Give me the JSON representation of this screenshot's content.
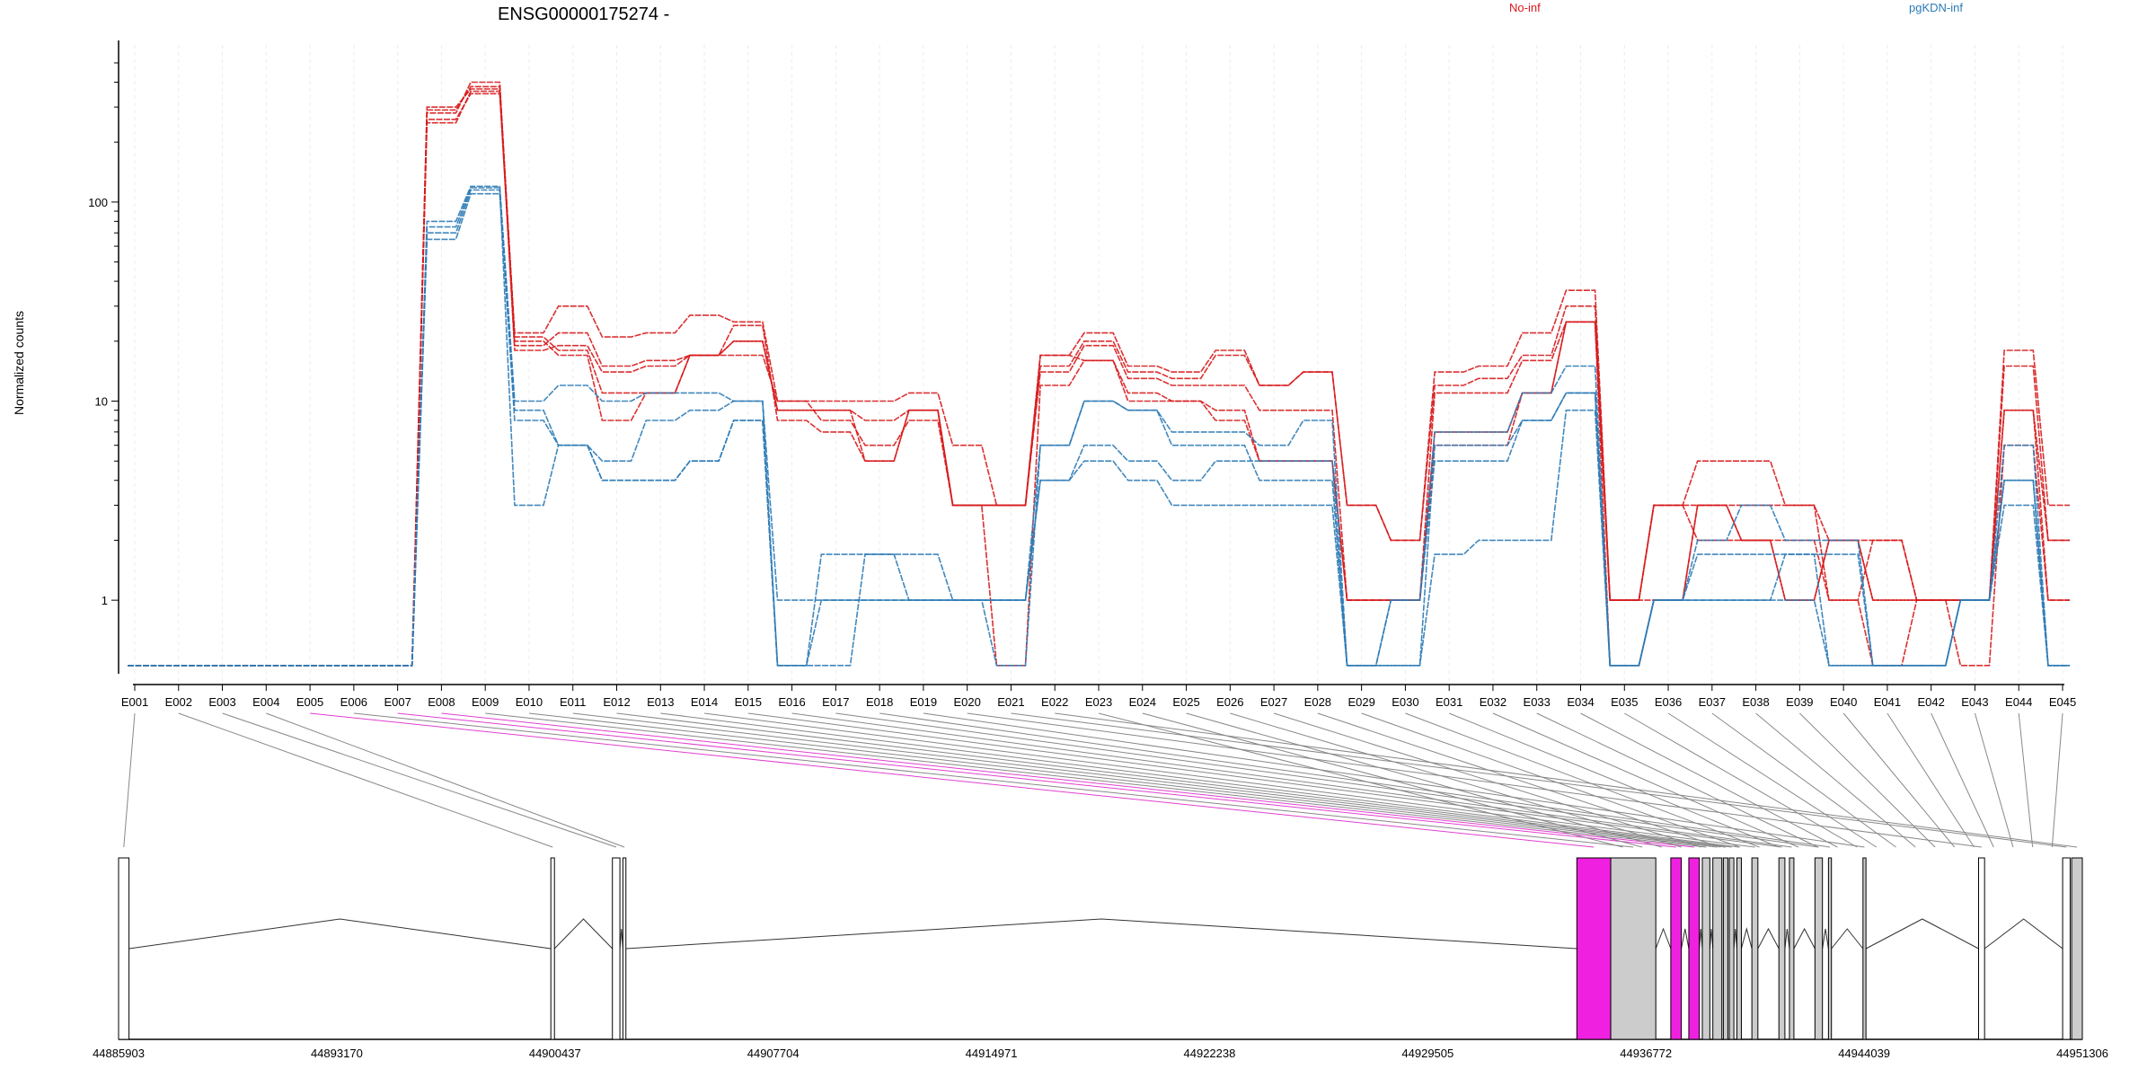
{
  "chart_data": {
    "type": "line",
    "title": "ENSG00000175274 -",
    "ylabel": "Normalized counts",
    "xlabel": "",
    "yscale": "log",
    "ylim": [
      0.45,
      500
    ],
    "yticks": [
      {
        "value": 1,
        "label": "1"
      },
      {
        "value": 10,
        "label": "10"
      },
      {
        "value": 100,
        "label": "100"
      }
    ],
    "legend": [
      {
        "label": "No-inf",
        "color": "#d7191c",
        "position": "top-center"
      },
      {
        "label": "pgKDN-inf",
        "color": "#2c7bb6",
        "position": "top-right"
      }
    ],
    "categories": [
      "E001",
      "E002",
      "E003",
      "E004",
      "E005",
      "E006",
      "E007",
      "E008",
      "E009",
      "E010",
      "E011",
      "E012",
      "E013",
      "E014",
      "E015",
      "E016",
      "E017",
      "E018",
      "E019",
      "E020",
      "E021",
      "E022",
      "E023",
      "E024",
      "E025",
      "E026",
      "E027",
      "E028",
      "E029",
      "E030",
      "E031",
      "E032",
      "E033",
      "E034",
      "E035",
      "E036",
      "E037",
      "E038",
      "E039",
      "E040",
      "E041",
      "E042",
      "E043",
      "E044",
      "E045"
    ],
    "series": [
      {
        "group": "No-inf",
        "color": "#d7191c",
        "values": [
          0.47,
          0.47,
          0.47,
          0.47,
          0.47,
          0.47,
          0.47,
          260,
          350,
          22,
          30,
          21,
          22,
          27,
          25,
          10,
          10,
          10,
          11,
          6,
          3,
          17,
          22,
          15,
          14,
          18,
          12,
          14,
          3,
          2,
          14,
          15,
          22,
          36,
          1,
          3,
          5,
          5,
          3,
          2,
          2,
          1,
          1,
          18,
          3
        ]
      },
      {
        "group": "No-inf",
        "color": "#d7191c",
        "values": [
          0.47,
          0.47,
          0.47,
          0.47,
          0.47,
          0.47,
          0.47,
          290,
          380,
          19,
          22,
          15,
          16,
          17,
          20,
          9,
          9,
          8,
          9,
          3,
          3,
          15,
          20,
          14,
          13,
          17,
          12,
          14,
          3,
          2,
          12,
          13,
          17,
          30,
          1,
          3,
          3,
          3,
          3,
          1,
          2,
          1,
          1,
          15,
          2
        ]
      },
      {
        "group": "No-inf",
        "color": "#d7191c",
        "values": [
          0.47,
          0.47,
          0.47,
          0.47,
          0.47,
          0.47,
          0.47,
          280,
          400,
          21,
          18,
          11,
          11,
          17,
          24,
          8,
          7,
          5,
          9,
          3,
          3,
          14,
          19,
          13,
          12,
          12,
          9,
          9,
          1,
          1,
          11,
          11,
          16,
          25,
          1,
          1,
          3,
          2,
          1,
          2,
          1,
          1,
          1,
          9,
          1
        ]
      },
      {
        "group": "No-inf",
        "color": "#d7191c",
        "values": [
          0.47,
          0.47,
          0.47,
          0.47,
          0.47,
          0.47,
          0.47,
          300,
          370,
          18,
          19,
          14,
          15,
          17,
          17,
          10,
          8,
          6,
          8,
          3,
          0.47,
          12,
          16,
          11,
          10,
          9,
          5,
          5,
          1,
          1,
          7,
          7,
          11,
          25,
          0.47,
          1,
          3,
          2,
          2,
          1,
          0.47,
          1,
          0.47,
          6,
          1
        ]
      },
      {
        "group": "No-inf",
        "color": "#d7191c",
        "values": [
          0.47,
          0.47,
          0.47,
          0.47,
          0.47,
          0.47,
          0.47,
          250,
          360,
          20,
          17,
          8,
          11,
          17,
          20,
          9,
          9,
          5,
          9,
          3,
          3,
          17,
          16,
          10,
          10,
          8,
          5,
          5,
          1,
          1,
          6,
          6,
          11,
          25,
          1,
          3,
          2,
          2,
          1,
          2,
          1,
          1,
          1,
          9,
          2
        ]
      },
      {
        "group": "pgKDN-inf",
        "color": "#2c7bb6",
        "values": [
          0.47,
          0.47,
          0.47,
          0.47,
          0.47,
          0.47,
          0.47,
          80,
          120,
          10,
          12,
          10,
          11,
          11,
          10,
          1,
          1,
          1,
          1,
          1,
          1,
          6,
          10,
          9,
          7,
          7,
          6,
          8,
          0.47,
          1,
          7,
          7,
          11,
          15,
          0.47,
          1,
          2,
          3,
          2,
          2,
          0.47,
          0.47,
          1,
          6,
          0.47
        ]
      },
      {
        "group": "pgKDN-inf",
        "color": "#2c7bb6",
        "values": [
          0.47,
          0.47,
          0.47,
          0.47,
          0.47,
          0.47,
          0.47,
          70,
          115,
          9,
          6,
          5,
          8,
          9,
          10,
          0.47,
          1.7,
          1.7,
          1.7,
          1,
          0.47,
          6,
          10,
          9,
          6,
          6,
          4,
          4,
          0.47,
          0.47,
          6,
          6,
          8,
          11,
          0.47,
          1,
          1.7,
          1.7,
          1.7,
          1.7,
          0.47,
          0.47,
          1,
          4,
          0.47
        ]
      },
      {
        "group": "pgKDN-inf",
        "color": "#2c7bb6",
        "values": [
          0.47,
          0.47,
          0.47,
          0.47,
          0.47,
          0.47,
          0.47,
          65,
          110,
          8,
          6,
          4,
          4,
          5,
          8,
          0.47,
          0.47,
          1.7,
          1,
          1,
          1,
          4,
          6,
          5,
          4,
          5,
          5,
          5,
          0.47,
          1,
          5,
          5,
          8,
          11,
          0.47,
          1,
          1,
          1,
          1,
          0.47,
          0.47,
          0.47,
          1,
          4,
          0.47
        ]
      },
      {
        "group": "pgKDN-inf",
        "color": "#2c7bb6",
        "values": [
          0.47,
          0.47,
          0.47,
          0.47,
          0.47,
          0.47,
          0.47,
          75,
          118,
          3,
          6,
          4,
          4,
          5,
          8,
          0.47,
          1,
          1,
          1,
          1,
          1,
          4,
          5,
          4,
          3,
          3,
          3,
          3,
          0.47,
          0.47,
          1.7,
          2,
          2,
          9,
          0.47,
          1,
          1,
          1,
          1.7,
          0.47,
          0.47,
          0.47,
          1,
          3,
          0.47
        ]
      }
    ],
    "grid": true,
    "gene_model": {
      "coordinate_ticks": [
        "44885903",
        "44893170",
        "44900437",
        "44907704",
        "44914971",
        "44922238",
        "44929505",
        "44936772",
        "44944039",
        "44951306"
      ],
      "genomic_range": [
        44885903,
        44951306
      ],
      "exon_colors": {
        "default": "#ffffff",
        "tested": "#cccccc",
        "highlighted": "#f020e0"
      },
      "exons": [
        {
          "id": "E001",
          "start": 44885903,
          "end": 44886250,
          "fill": "default"
        },
        {
          "id": "E002",
          "start": 44900300,
          "end": 44900420,
          "fill": "default"
        },
        {
          "id": "E003",
          "start": 44902350,
          "end": 44902600,
          "fill": "default"
        },
        {
          "id": "E004",
          "start": 44902700,
          "end": 44902800,
          "fill": "default"
        },
        {
          "id": "E005",
          "start": 44934470,
          "end": 44935600,
          "fill": "highlighted"
        },
        {
          "id": "E006",
          "start": 44935600,
          "end": 44937100,
          "fill": "tested"
        },
        {
          "id": "E007",
          "start": 44937600,
          "end": 44937950,
          "fill": "highlighted"
        },
        {
          "id": "E008",
          "start": 44938200,
          "end": 44938550,
          "fill": "highlighted"
        },
        {
          "id": "E009",
          "start": 44938650,
          "end": 44938900,
          "fill": "tested"
        },
        {
          "id": "E010",
          "start": 44939000,
          "end": 44939300,
          "fill": "tested"
        },
        {
          "id": "E011",
          "start": 44939350,
          "end": 44939500,
          "fill": "tested"
        },
        {
          "id": "E012",
          "start": 44939550,
          "end": 44939700,
          "fill": "tested"
        },
        {
          "id": "E013",
          "start": 44939800,
          "end": 44939950,
          "fill": "tested"
        },
        {
          "id": "E014",
          "start": 44940300,
          "end": 44940500,
          "fill": "tested"
        },
        {
          "id": "E015",
          "start": 44941200,
          "end": 44941400,
          "fill": "tested"
        },
        {
          "id": "E016",
          "start": 44941550,
          "end": 44941700,
          "fill": "tested"
        },
        {
          "id": "E017",
          "start": 44942400,
          "end": 44942650,
          "fill": "tested"
        },
        {
          "id": "E018",
          "start": 44942850,
          "end": 44942950,
          "fill": "tested"
        },
        {
          "id": "E019",
          "start": 44944000,
          "end": 44944100,
          "fill": "tested"
        },
        {
          "id": "E020",
          "start": 44947850,
          "end": 44948050,
          "fill": "default"
        },
        {
          "id": "E021",
          "start": 44950650,
          "end": 44950900,
          "fill": "default"
        },
        {
          "id": "E022",
          "start": 44950950,
          "end": 44951306,
          "fill": "tested"
        }
      ]
    }
  }
}
